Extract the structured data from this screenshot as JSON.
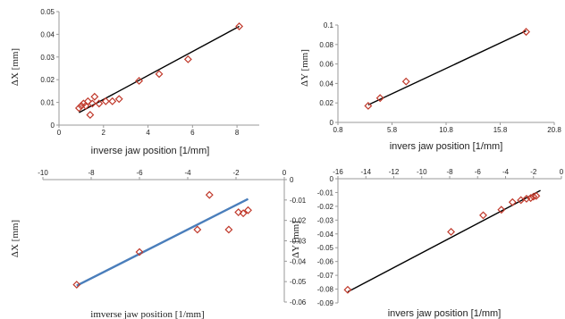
{
  "chart_data": [
    {
      "id": "top-left",
      "type": "scatter",
      "xlabel": "inverse jaw position [1/mm]",
      "ylabel": "ΔX [mm]",
      "xlim": [
        0,
        9
      ],
      "ylim": [
        0,
        0.05
      ],
      "xticks": [
        0,
        2,
        4,
        6,
        8
      ],
      "yticks": [
        0,
        0.01,
        0.02,
        0.03,
        0.04,
        0.05
      ],
      "x_axis_position": "bottom",
      "y_axis_position": "left",
      "marker": "diamond",
      "marker_color": "#c0392b",
      "line_color": "#000000",
      "points": [
        {
          "x": 0.9,
          "y": 0.0075
        },
        {
          "x": 1.0,
          "y": 0.0085
        },
        {
          "x": 1.1,
          "y": 0.0095
        },
        {
          "x": 1.2,
          "y": 0.0085
        },
        {
          "x": 1.3,
          "y": 0.0105
        },
        {
          "x": 1.4,
          "y": 0.0045
        },
        {
          "x": 1.5,
          "y": 0.0095
        },
        {
          "x": 1.6,
          "y": 0.0125
        },
        {
          "x": 1.8,
          "y": 0.0095
        },
        {
          "x": 2.1,
          "y": 0.0105
        },
        {
          "x": 2.4,
          "y": 0.0105
        },
        {
          "x": 2.7,
          "y": 0.0115
        },
        {
          "x": 3.6,
          "y": 0.0195
        },
        {
          "x": 4.5,
          "y": 0.0225
        },
        {
          "x": 5.8,
          "y": 0.029
        },
        {
          "x": 8.1,
          "y": 0.0435
        }
      ],
      "trendline": [
        {
          "x": 0.9,
          "y": 0.0055
        },
        {
          "x": 8.1,
          "y": 0.0435
        }
      ]
    },
    {
      "id": "top-right",
      "type": "scatter",
      "xlabel": "invers jaw position [1/mm]",
      "ylabel": "ΔY [mm]",
      "xlim": [
        0.8,
        20.8
      ],
      "ylim": [
        0,
        0.1
      ],
      "xticks": [
        0.8,
        5.8,
        10.8,
        15.8,
        20.8
      ],
      "yticks": [
        0,
        0.02,
        0.04,
        0.06,
        0.08,
        0.1
      ],
      "x_axis_position": "bottom",
      "y_axis_position": "left",
      "marker": "diamond",
      "marker_color": "#c0392b",
      "line_color": "#000000",
      "points": [
        {
          "x": 3.6,
          "y": 0.017
        },
        {
          "x": 4.7,
          "y": 0.025
        },
        {
          "x": 7.1,
          "y": 0.042
        },
        {
          "x": 18.2,
          "y": 0.093
        }
      ],
      "trendline": [
        {
          "x": 3.6,
          "y": 0.018
        },
        {
          "x": 18.2,
          "y": 0.094
        }
      ]
    },
    {
      "id": "bottom-left",
      "type": "scatter",
      "xlabel": "imverse jaw position [1/mm]",
      "ylabel": "ΔX [mm]",
      "xlim": [
        -10,
        0
      ],
      "ylim": [
        -0.06,
        0
      ],
      "xticks": [
        -10,
        -8,
        -6,
        -4,
        -2,
        0
      ],
      "yticks": [
        0,
        -0.01,
        -0.02,
        -0.03,
        -0.04,
        -0.05,
        -0.06
      ],
      "x_axis_position": "top",
      "y_axis_position": "right",
      "marker": "diamond",
      "marker_color": "#c0392b",
      "line_color": "#4a7ebb",
      "points": [
        {
          "x": -8.6,
          "y": -0.0515
        },
        {
          "x": -6.0,
          "y": -0.0355
        },
        {
          "x": -3.6,
          "y": -0.0245
        },
        {
          "x": -3.1,
          "y": -0.0075
        },
        {
          "x": -2.3,
          "y": -0.0245
        },
        {
          "x": -1.9,
          "y": -0.016
        },
        {
          "x": -1.7,
          "y": -0.0165
        },
        {
          "x": -1.5,
          "y": -0.015
        }
      ],
      "trendline": [
        {
          "x": -8.6,
          "y": -0.052
        },
        {
          "x": -1.5,
          "y": -0.0095
        }
      ]
    },
    {
      "id": "bottom-right",
      "type": "scatter",
      "xlabel": "invers jaw position [1/mm]",
      "ylabel": "ΔY [mm]",
      "xlim": [
        -16,
        0
      ],
      "ylim": [
        -0.09,
        0
      ],
      "xticks": [
        -16,
        -14,
        -12,
        -10,
        -8,
        -6,
        -4,
        -2,
        0
      ],
      "yticks": [
        0,
        -0.01,
        -0.02,
        -0.03,
        -0.04,
        -0.05,
        -0.06,
        -0.07,
        -0.08,
        -0.09
      ],
      "x_axis_position": "top",
      "y_axis_position": "left",
      "marker": "diamond",
      "marker_color": "#c0392b",
      "line_color": "#000000",
      "points": [
        {
          "x": -15.3,
          "y": -0.0805
        },
        {
          "x": -7.9,
          "y": -0.0385
        },
        {
          "x": -5.6,
          "y": -0.0265
        },
        {
          "x": -4.3,
          "y": -0.0225
        },
        {
          "x": -3.5,
          "y": -0.017
        },
        {
          "x": -2.9,
          "y": -0.0155
        },
        {
          "x": -2.5,
          "y": -0.0145
        },
        {
          "x": -2.2,
          "y": -0.014
        },
        {
          "x": -2.0,
          "y": -0.013
        },
        {
          "x": -1.8,
          "y": -0.0125
        }
      ],
      "trendline": [
        {
          "x": -15.3,
          "y": -0.082
        },
        {
          "x": -1.5,
          "y": -0.0085
        }
      ]
    }
  ]
}
